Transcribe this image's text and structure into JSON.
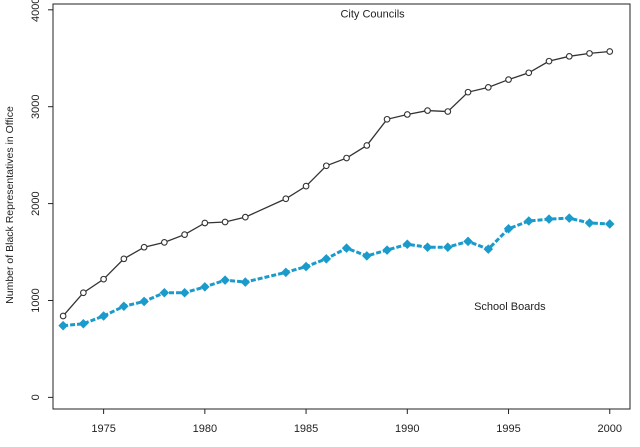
{
  "chart_data": {
    "type": "line",
    "title": "",
    "xlabel": "",
    "ylabel": "Number of Black Representatives in Office",
    "xlim": [
      1972.5,
      2001
    ],
    "ylim": [
      -120,
      4060
    ],
    "xticks": [
      1975,
      1980,
      1985,
      1990,
      1995,
      2000
    ],
    "yticks": [
      0,
      1000,
      2000,
      3000,
      4000
    ],
    "grid": false,
    "legend": "none",
    "series": [
      {
        "name": "City Councils",
        "label": "City Councils",
        "label_x": 1986.7,
        "label_y": 3920,
        "color": "#333333",
        "marker": "open-circle",
        "x": [
          1973,
          1974,
          1975,
          1976,
          1977,
          1978,
          1979,
          1980,
          1981,
          1982,
          1984,
          1985,
          1986,
          1987,
          1988,
          1989,
          1990,
          1991,
          1992,
          1993,
          1994,
          1995,
          1996,
          1997,
          1998,
          1999,
          2000
        ],
        "values": [
          840,
          1080,
          1220,
          1430,
          1550,
          1600,
          1680,
          1800,
          1810,
          1860,
          2050,
          2180,
          2390,
          2470,
          2600,
          2870,
          2920,
          2960,
          2950,
          3150,
          3200,
          3280,
          3350,
          3470,
          3520,
          3550,
          3570
        ]
      },
      {
        "name": "School Boards",
        "label": "School Boards",
        "label_x": 1993.3,
        "label_y": 900,
        "color": "#1a9bcb",
        "marker": "filled-diamond",
        "x": [
          1973,
          1974,
          1975,
          1976,
          1977,
          1978,
          1979,
          1980,
          1981,
          1982,
          1984,
          1985,
          1986,
          1987,
          1988,
          1989,
          1990,
          1991,
          1992,
          1993,
          1994,
          1995,
          1996,
          1997,
          1998,
          1999,
          2000
        ],
        "values": [
          740,
          760,
          840,
          940,
          990,
          1080,
          1080,
          1140,
          1210,
          1190,
          1290,
          1350,
          1430,
          1540,
          1460,
          1520,
          1580,
          1550,
          1550,
          1610,
          1530,
          1740,
          1820,
          1840,
          1850,
          1800,
          1790
        ]
      }
    ]
  }
}
